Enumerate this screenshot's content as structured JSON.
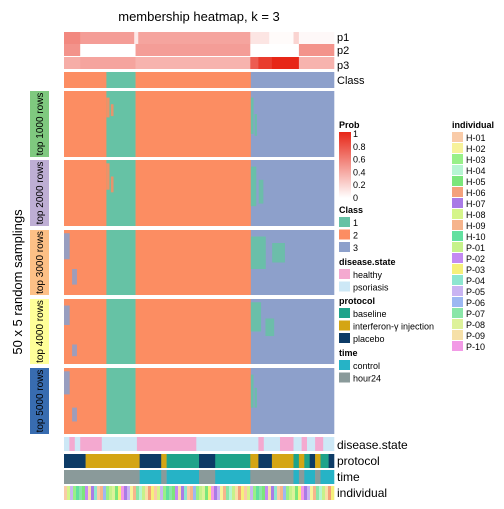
{
  "chart_data": {
    "type": "heatmap",
    "title": "membership heatmap, k = 3",
    "ylabel": "50 x 5 random samplings",
    "top_rows": [
      "p1",
      "p2",
      "p3",
      "Class"
    ],
    "bottom_rows": [
      "disease.state",
      "protocol",
      "time",
      "individual"
    ],
    "row_groups": [
      "top 1000 rows",
      "top 2000 rows",
      "top 3000 rows",
      "top 4000 rows",
      "top 5000 rows"
    ],
    "row_group_colors": [
      "#7FC97F",
      "#BEAED4",
      "#FDC086",
      "#FFFF99",
      "#386CB0"
    ],
    "class_colors": {
      "1": "#66C2A5",
      "2": "#FC8D62",
      "3": "#8DA0CB"
    },
    "class_segments": [
      {
        "class": "2",
        "start": 0,
        "end": 0.157
      },
      {
        "class": "1",
        "start": 0.157,
        "end": 0.265
      },
      {
        "class": "2",
        "start": 0.265,
        "end": 0.692
      },
      {
        "class": "3",
        "start": 0.692,
        "end": 1.0
      }
    ],
    "prob_rows": {
      "p1": [
        {
          "start": 0,
          "end": 0.06,
          "value": 0.55
        },
        {
          "start": 0.06,
          "end": 0.26,
          "value": 0.45
        },
        {
          "start": 0.26,
          "end": 0.275,
          "value": 0.1
        },
        {
          "start": 0.275,
          "end": 0.69,
          "value": 0.42
        },
        {
          "start": 0.69,
          "end": 0.76,
          "value": 0.12
        },
        {
          "start": 0.76,
          "end": 0.85,
          "value": 0.02
        },
        {
          "start": 0.85,
          "end": 0.87,
          "value": 0.2
        },
        {
          "start": 0.87,
          "end": 1.0,
          "value": 0.03
        }
      ],
      "p2": [
        {
          "start": 0,
          "end": 0.06,
          "value": 0.5
        },
        {
          "start": 0.06,
          "end": 0.265,
          "value": 0.0
        },
        {
          "start": 0.265,
          "end": 0.69,
          "value": 0.45
        },
        {
          "start": 0.69,
          "end": 0.87,
          "value": 0.0
        },
        {
          "start": 0.87,
          "end": 1.0,
          "value": 0.5
        }
      ],
      "p3": [
        {
          "start": 0,
          "end": 0.06,
          "value": 0.38
        },
        {
          "start": 0.06,
          "end": 0.265,
          "value": 0.42
        },
        {
          "start": 0.265,
          "end": 0.69,
          "value": 0.35
        },
        {
          "start": 0.69,
          "end": 0.72,
          "value": 0.75
        },
        {
          "start": 0.72,
          "end": 0.77,
          "value": 0.9
        },
        {
          "start": 0.77,
          "end": 0.87,
          "value": 1.0
        },
        {
          "start": 0.87,
          "end": 1.0,
          "value": 0.35
        }
      ]
    },
    "legend": {
      "prob": {
        "title": "Prob",
        "ticks": [
          "1",
          "0.8",
          "0.6",
          "0.4",
          "0.2",
          "0"
        ]
      },
      "class": {
        "title": "Class",
        "items": [
          {
            "label": "1",
            "color": "#66C2A5"
          },
          {
            "label": "2",
            "color": "#FC8D62"
          },
          {
            "label": "3",
            "color": "#8DA0CB"
          }
        ]
      },
      "disease_state": {
        "title": "disease.state",
        "items": [
          {
            "label": "healthy",
            "color": "#F4A9D0"
          },
          {
            "label": "psoriasis",
            "color": "#CDE8F6"
          }
        ]
      },
      "protocol": {
        "title": "protocol",
        "items": [
          {
            "label": "baseline",
            "color": "#1FA38A"
          },
          {
            "label": "interferon-γ injection",
            "color": "#D4A514"
          },
          {
            "label": "placebo",
            "color": "#0D3B66"
          }
        ]
      },
      "time": {
        "title": "time",
        "items": [
          {
            "label": "control",
            "color": "#26B3C6"
          },
          {
            "label": "hour24",
            "color": "#8A9A9A"
          }
        ]
      },
      "individual": {
        "title": "individual",
        "items": [
          {
            "label": "H-01",
            "color": "#F9CBA8"
          },
          {
            "label": "H-02",
            "color": "#F7F29A"
          },
          {
            "label": "H-03",
            "color": "#98F088"
          },
          {
            "label": "H-04",
            "color": "#B6F5D2"
          },
          {
            "label": "H-05",
            "color": "#7BE67B"
          },
          {
            "label": "H-06",
            "color": "#F4A17C"
          },
          {
            "label": "H-07",
            "color": "#A97BE6"
          },
          {
            "label": "H-08",
            "color": "#D5F58A"
          },
          {
            "label": "H-09",
            "color": "#F6B48C"
          },
          {
            "label": "H-10",
            "color": "#62E0A0"
          },
          {
            "label": "P-01",
            "color": "#C6F28A"
          },
          {
            "label": "P-02",
            "color": "#C38AF2"
          },
          {
            "label": "P-03",
            "color": "#F6F07A"
          },
          {
            "label": "P-04",
            "color": "#8DE6D0"
          },
          {
            "label": "P-05",
            "color": "#C9B4F2"
          },
          {
            "label": "P-06",
            "color": "#9CB8F2"
          },
          {
            "label": "P-07",
            "color": "#8AE6A8"
          },
          {
            "label": "P-08",
            "color": "#DDF29A"
          },
          {
            "label": "P-09",
            "color": "#F6E0A8"
          },
          {
            "label": "P-10",
            "color": "#F29AE6"
          }
        ]
      }
    },
    "disease_state_segments": [
      {
        "state": "psoriasis",
        "start": 0,
        "end": 0.02
      },
      {
        "state": "healthy",
        "start": 0.02,
        "end": 0.04
      },
      {
        "state": "psoriasis",
        "start": 0.04,
        "end": 0.06
      },
      {
        "state": "healthy",
        "start": 0.06,
        "end": 0.14
      },
      {
        "state": "psoriasis",
        "start": 0.14,
        "end": 0.27
      },
      {
        "state": "healthy",
        "start": 0.27,
        "end": 0.49
      },
      {
        "state": "psoriasis",
        "start": 0.49,
        "end": 0.72
      },
      {
        "state": "healthy",
        "start": 0.72,
        "end": 0.74
      },
      {
        "state": "psoriasis",
        "start": 0.74,
        "end": 0.8
      },
      {
        "state": "healthy",
        "start": 0.8,
        "end": 0.85
      },
      {
        "state": "psoriasis",
        "start": 0.85,
        "end": 0.88
      },
      {
        "state": "healthy",
        "start": 0.88,
        "end": 0.9
      },
      {
        "state": "psoriasis",
        "start": 0.9,
        "end": 0.93
      },
      {
        "state": "healthy",
        "start": 0.93,
        "end": 0.96
      },
      {
        "state": "psoriasis",
        "start": 0.96,
        "end": 1.0
      }
    ],
    "protocol_segments": [
      {
        "protocol": "placebo",
        "start": 0,
        "end": 0.08
      },
      {
        "protocol": "interferon-γ injection",
        "start": 0.08,
        "end": 0.28
      },
      {
        "protocol": "placebo",
        "start": 0.28,
        "end": 0.36
      },
      {
        "protocol": "interferon-γ injection",
        "start": 0.36,
        "end": 0.38
      },
      {
        "protocol": "baseline",
        "start": 0.38,
        "end": 0.5
      },
      {
        "protocol": "placebo",
        "start": 0.5,
        "end": 0.56
      },
      {
        "protocol": "baseline",
        "start": 0.56,
        "end": 0.69
      },
      {
        "protocol": "interferon-γ injection",
        "start": 0.69,
        "end": 0.72
      },
      {
        "protocol": "placebo",
        "start": 0.72,
        "end": 0.77
      },
      {
        "protocol": "interferon-γ injection",
        "start": 0.77,
        "end": 0.85
      },
      {
        "protocol": "baseline",
        "start": 0.85,
        "end": 0.87
      },
      {
        "protocol": "interferon-γ injection",
        "start": 0.87,
        "end": 0.89
      },
      {
        "protocol": "baseline",
        "start": 0.89,
        "end": 0.91
      },
      {
        "protocol": "placebo",
        "start": 0.91,
        "end": 0.93
      },
      {
        "protocol": "interferon-γ injection",
        "start": 0.93,
        "end": 0.95
      },
      {
        "protocol": "baseline",
        "start": 0.95,
        "end": 0.98
      },
      {
        "protocol": "placebo",
        "start": 0.98,
        "end": 1.0
      }
    ],
    "time_segments": [
      {
        "time": "hour24",
        "start": 0,
        "end": 0.28
      },
      {
        "time": "control",
        "start": 0.28,
        "end": 0.36
      },
      {
        "time": "hour24",
        "start": 0.36,
        "end": 0.38
      },
      {
        "time": "control",
        "start": 0.38,
        "end": 0.5
      },
      {
        "time": "hour24",
        "start": 0.5,
        "end": 0.56
      },
      {
        "time": "control",
        "start": 0.56,
        "end": 0.69
      },
      {
        "time": "hour24",
        "start": 0.69,
        "end": 0.85
      },
      {
        "time": "control",
        "start": 0.85,
        "end": 0.87
      },
      {
        "time": "hour24",
        "start": 0.87,
        "end": 0.89
      },
      {
        "time": "control",
        "start": 0.89,
        "end": 0.93
      },
      {
        "time": "hour24",
        "start": 0.93,
        "end": 0.95
      },
      {
        "time": "control",
        "start": 0.95,
        "end": 1.0
      }
    ]
  }
}
